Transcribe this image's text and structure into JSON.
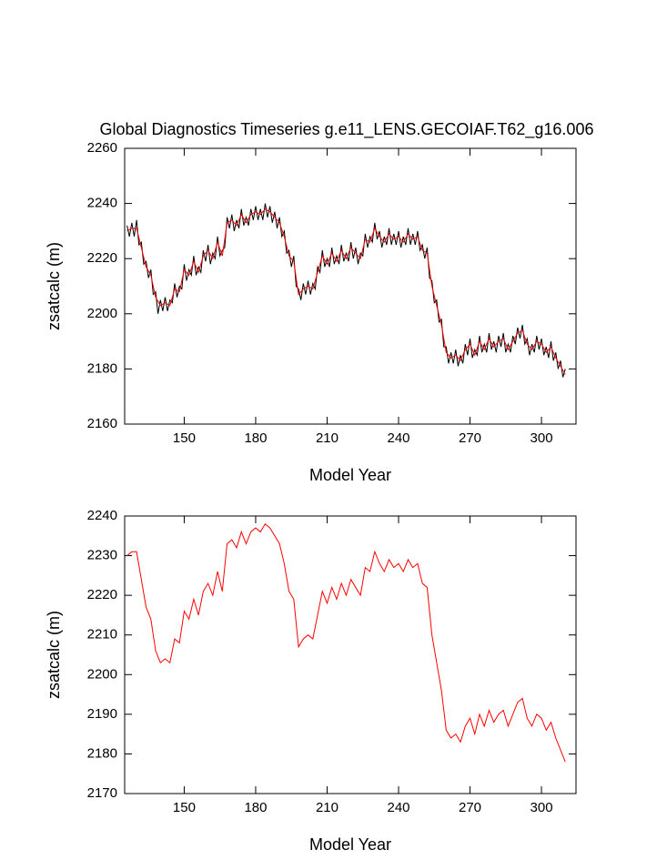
{
  "chart_data": [
    {
      "type": "line",
      "title": "Global Diagnostics Timeseries g.e11_LENS.GECOIAF.T62_g16.006",
      "xlabel": "Model Year",
      "ylabel": "zsatcalc (m)",
      "xlim": [
        125,
        314.5
      ],
      "ylim": [
        2160,
        2260
      ],
      "xticks": [
        150,
        180,
        210,
        240,
        270,
        300
      ],
      "yticks": [
        2160,
        2180,
        2200,
        2220,
        2240,
        2260
      ],
      "series": [
        {
          "color": "#000000",
          "x": [
            126,
            127,
            128,
            129,
            130,
            131,
            132,
            133,
            134,
            135,
            136,
            137,
            138,
            139,
            140,
            141,
            142,
            143,
            144,
            145,
            146,
            147,
            148,
            149,
            150,
            151,
            152,
            153,
            154,
            155,
            156,
            157,
            158,
            159,
            160,
            161,
            162,
            163,
            164,
            165,
            166,
            167,
            168,
            169,
            170,
            171,
            172,
            173,
            174,
            175,
            176,
            177,
            178,
            179,
            180,
            181,
            182,
            183,
            184,
            185,
            186,
            187,
            188,
            189,
            190,
            191,
            192,
            193,
            194,
            195,
            196,
            197,
            198,
            199,
            200,
            201,
            202,
            203,
            204,
            205,
            206,
            207,
            208,
            209,
            210,
            211,
            212,
            213,
            214,
            215,
            216,
            217,
            218,
            219,
            220,
            221,
            222,
            223,
            224,
            225,
            226,
            227,
            228,
            229,
            230,
            231,
            232,
            233,
            234,
            235,
            236,
            237,
            238,
            239,
            240,
            241,
            242,
            243,
            244,
            245,
            246,
            247,
            248,
            249,
            250,
            251,
            252,
            253,
            254,
            255,
            256,
            257,
            258,
            259,
            260,
            261,
            262,
            263,
            264,
            265,
            266,
            267,
            268,
            269,
            270,
            271,
            272,
            273,
            274,
            275,
            276,
            277,
            278,
            279,
            280,
            281,
            282,
            283,
            284,
            285,
            286,
            287,
            288,
            289,
            290,
            291,
            292,
            293,
            294,
            295,
            296,
            297,
            298,
            299,
            300,
            301,
            302,
            303,
            304,
            305,
            306,
            307,
            308,
            309,
            310
          ],
          "values": [
            2232,
            2228,
            2233,
            2228,
            2234,
            2225,
            2226,
            2218,
            2219,
            2213,
            2216,
            2207,
            2208,
            2200,
            2205,
            2201,
            2206,
            2201,
            2205,
            2204,
            2211,
            2206,
            2210,
            2209,
            2218,
            2212,
            2216,
            2214,
            2221,
            2214,
            2217,
            2215,
            2223,
            2219,
            2225,
            2218,
            2222,
            2220,
            2228,
            2221,
            2223,
            2224,
            2235,
            2231,
            2236,
            2230,
            2234,
            2231,
            2238,
            2232,
            2235,
            2232,
            2238,
            2234,
            2239,
            2234,
            2238,
            2234,
            2240,
            2235,
            2239,
            2233,
            2237,
            2231,
            2235,
            2228,
            2230,
            2222,
            2223,
            2217,
            2221,
            2210,
            2209,
            2205,
            2211,
            2207,
            2212,
            2207,
            2211,
            2209,
            2217,
            2215,
            2223,
            2217,
            2220,
            2217,
            2224,
            2218,
            2221,
            2218,
            2225,
            2219,
            2222,
            2219,
            2226,
            2220,
            2224,
            2218,
            2222,
            2221,
            2229,
            2224,
            2228,
            2226,
            2233,
            2227,
            2230,
            2224,
            2228,
            2225,
            2231,
            2225,
            2229,
            2225,
            2230,
            2224,
            2228,
            2225,
            2231,
            2225,
            2229,
            2225,
            2230,
            2223,
            2225,
            2220,
            2224,
            2213,
            2212,
            2204,
            2205,
            2197,
            2198,
            2188,
            2188,
            2182,
            2186,
            2182,
            2187,
            2181,
            2185,
            2182,
            2189,
            2185,
            2191,
            2184,
            2187,
            2185,
            2192,
            2186,
            2189,
            2186,
            2193,
            2187,
            2190,
            2186,
            2192,
            2188,
            2193,
            2186,
            2189,
            2186,
            2192,
            2189,
            2195,
            2191,
            2196,
            2189,
            2191,
            2185,
            2189,
            2186,
            2192,
            2187,
            2191,
            2185,
            2188,
            2184,
            2190,
            2183,
            2186,
            2180,
            2183,
            2177,
            2180
          ]
        },
        {
          "color": "#ff0000",
          "x": [
            126,
            128,
            130,
            132,
            134,
            136,
            138,
            140,
            142,
            144,
            146,
            148,
            150,
            152,
            154,
            156,
            158,
            160,
            162,
            164,
            166,
            168,
            170,
            172,
            174,
            176,
            178,
            180,
            182,
            184,
            186,
            188,
            190,
            192,
            194,
            196,
            198,
            200,
            202,
            204,
            206,
            208,
            210,
            212,
            214,
            216,
            218,
            220,
            222,
            224,
            226,
            228,
            230,
            232,
            234,
            236,
            238,
            240,
            242,
            244,
            246,
            248,
            250,
            252,
            254,
            256,
            258,
            260,
            262,
            264,
            266,
            268,
            270,
            272,
            274,
            276,
            278,
            280,
            282,
            284,
            286,
            288,
            290,
            292,
            294,
            296,
            298,
            300,
            302,
            304,
            306,
            308,
            310
          ],
          "values": [
            2230,
            2231,
            2231,
            2224,
            2217,
            2214,
            2206,
            2203,
            2204,
            2203,
            2209,
            2208,
            2216,
            2214,
            2219,
            2215,
            2221,
            2223,
            2220,
            2226,
            2221,
            2233,
            2234,
            2232,
            2236,
            2233,
            2236,
            2237,
            2236,
            2238,
            2237,
            2235,
            2233,
            2228,
            2221,
            2219,
            2207,
            2209,
            2210,
            2209,
            2215,
            2221,
            2218,
            2222,
            2219,
            2223,
            2220,
            2224,
            2222,
            2220,
            2227,
            2226,
            2231,
            2228,
            2226,
            2229,
            2227,
            2228,
            2226,
            2229,
            2227,
            2228,
            2223,
            2222,
            2210,
            2203,
            2196,
            2186,
            2184,
            2185,
            2183,
            2187,
            2189,
            2185,
            2190,
            2187,
            2191,
            2188,
            2190,
            2191,
            2187,
            2190,
            2193,
            2194,
            2189,
            2187,
            2190,
            2189,
            2186,
            2188,
            2184,
            2181,
            2178
          ]
        }
      ]
    },
    {
      "type": "line",
      "xlabel": "Model Year",
      "ylabel": "zsatcalc (m)",
      "xlim": [
        125,
        314.5
      ],
      "ylim": [
        2170,
        2240
      ],
      "xticks": [
        150,
        180,
        210,
        240,
        270,
        300
      ],
      "yticks": [
        2170,
        2180,
        2190,
        2200,
        2210,
        2220,
        2230,
        2240
      ],
      "series": [
        {
          "color": "#ff0000",
          "x": [
            126,
            128,
            130,
            132,
            134,
            136,
            138,
            140,
            142,
            144,
            146,
            148,
            150,
            152,
            154,
            156,
            158,
            160,
            162,
            164,
            166,
            168,
            170,
            172,
            174,
            176,
            178,
            180,
            182,
            184,
            186,
            188,
            190,
            192,
            194,
            196,
            198,
            200,
            202,
            204,
            206,
            208,
            210,
            212,
            214,
            216,
            218,
            220,
            222,
            224,
            226,
            228,
            230,
            232,
            234,
            236,
            238,
            240,
            242,
            244,
            246,
            248,
            250,
            252,
            254,
            256,
            258,
            260,
            262,
            264,
            266,
            268,
            270,
            272,
            274,
            276,
            278,
            280,
            282,
            284,
            286,
            288,
            290,
            292,
            294,
            296,
            298,
            300,
            302,
            304,
            306,
            308,
            310
          ],
          "values": [
            2230,
            2231,
            2231,
            2224,
            2217,
            2214,
            2206,
            2203,
            2204,
            2203,
            2209,
            2208,
            2216,
            2214,
            2219,
            2215,
            2221,
            2223,
            2220,
            2226,
            2221,
            2233,
            2234,
            2232,
            2236,
            2233,
            2236,
            2237,
            2236,
            2238,
            2237,
            2235,
            2233,
            2228,
            2221,
            2219,
            2207,
            2209,
            2210,
            2209,
            2215,
            2221,
            2218,
            2222,
            2219,
            2223,
            2220,
            2224,
            2222,
            2220,
            2227,
            2226,
            2231,
            2228,
            2226,
            2229,
            2227,
            2228,
            2226,
            2229,
            2227,
            2228,
            2223,
            2222,
            2210,
            2203,
            2196,
            2186,
            2184,
            2185,
            2183,
            2187,
            2189,
            2185,
            2190,
            2187,
            2191,
            2188,
            2190,
            2191,
            2187,
            2190,
            2193,
            2194,
            2189,
            2187,
            2190,
            2189,
            2186,
            2188,
            2184,
            2181,
            2178
          ]
        }
      ]
    }
  ]
}
